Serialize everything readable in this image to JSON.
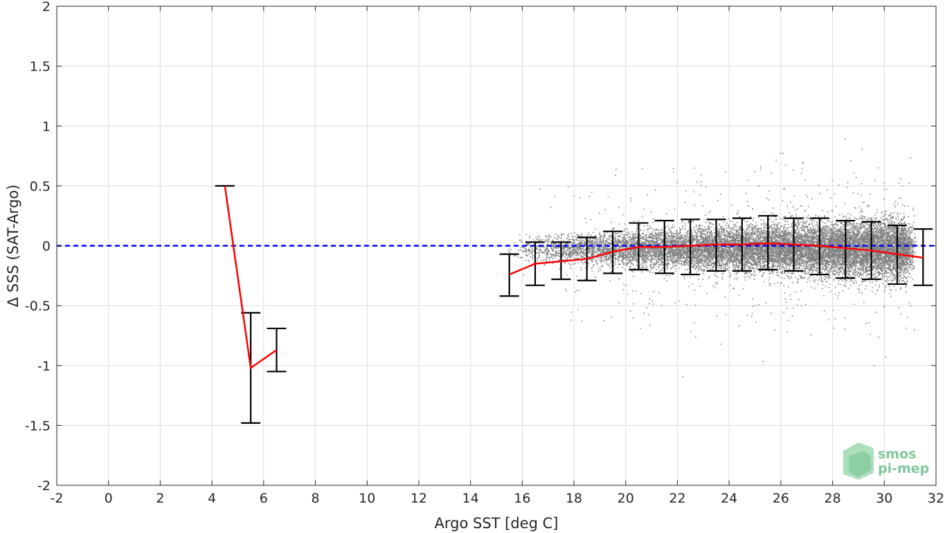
{
  "chart_data": {
    "type": "scatter",
    "xlabel": "Argo SST [deg C]",
    "ylabel": "Δ SSS (SAT-Argo)",
    "xlim": [
      -2,
      32
    ],
    "ylim": [
      -2,
      2
    ],
    "x_ticks": [
      "-2",
      "0",
      "2",
      "4",
      "6",
      "8",
      "10",
      "12",
      "14",
      "16",
      "18",
      "20",
      "22",
      "24",
      "26",
      "28",
      "30",
      "32"
    ],
    "y_ticks": [
      "2",
      "1.5",
      "1",
      "0.5",
      "0",
      "-0.5",
      "-1",
      "-1.5",
      "-2"
    ],
    "grid": true,
    "zero_line": {
      "y": 0,
      "color": "#0000ff",
      "style": "dashed"
    },
    "binned_mean": {
      "color": "#ff0000",
      "x": [
        4.5,
        5.5,
        6.5,
        15.5,
        16.5,
        17.5,
        18.5,
        19.5,
        20.5,
        21.5,
        22.5,
        23.5,
        24.5,
        25.5,
        26.5,
        27.5,
        28.5,
        29.5,
        30.5,
        31.5
      ],
      "y": [
        0.5,
        -1.02,
        -0.87,
        -0.24,
        -0.15,
        -0.13,
        -0.11,
        -0.05,
        -0.01,
        -0.01,
        0.0,
        0.01,
        0.01,
        0.02,
        0.01,
        0.0,
        -0.02,
        -0.04,
        -0.07,
        -0.1
      ],
      "err_low": [
        0.5,
        -1.48,
        -1.05,
        -0.42,
        -0.33,
        -0.28,
        -0.29,
        -0.23,
        -0.2,
        -0.23,
        -0.24,
        -0.21,
        -0.21,
        -0.2,
        -0.21,
        -0.24,
        -0.27,
        -0.28,
        -0.32,
        -0.33
      ],
      "err_high": [
        0.5,
        -0.56,
        -0.69,
        -0.07,
        0.03,
        0.03,
        0.07,
        0.12,
        0.19,
        0.21,
        0.22,
        0.22,
        0.23,
        0.25,
        0.23,
        0.23,
        0.21,
        0.2,
        0.17,
        0.14
      ]
    },
    "scatter": {
      "color": "#808080",
      "x_range": [
        15.5,
        31
      ],
      "mean_y": 0,
      "note_density": "dense cloud of individual matchups, mostly between -0.5 and 0.5"
    }
  },
  "logo": {
    "line1": "smos",
    "line2": "pi-mep"
  }
}
